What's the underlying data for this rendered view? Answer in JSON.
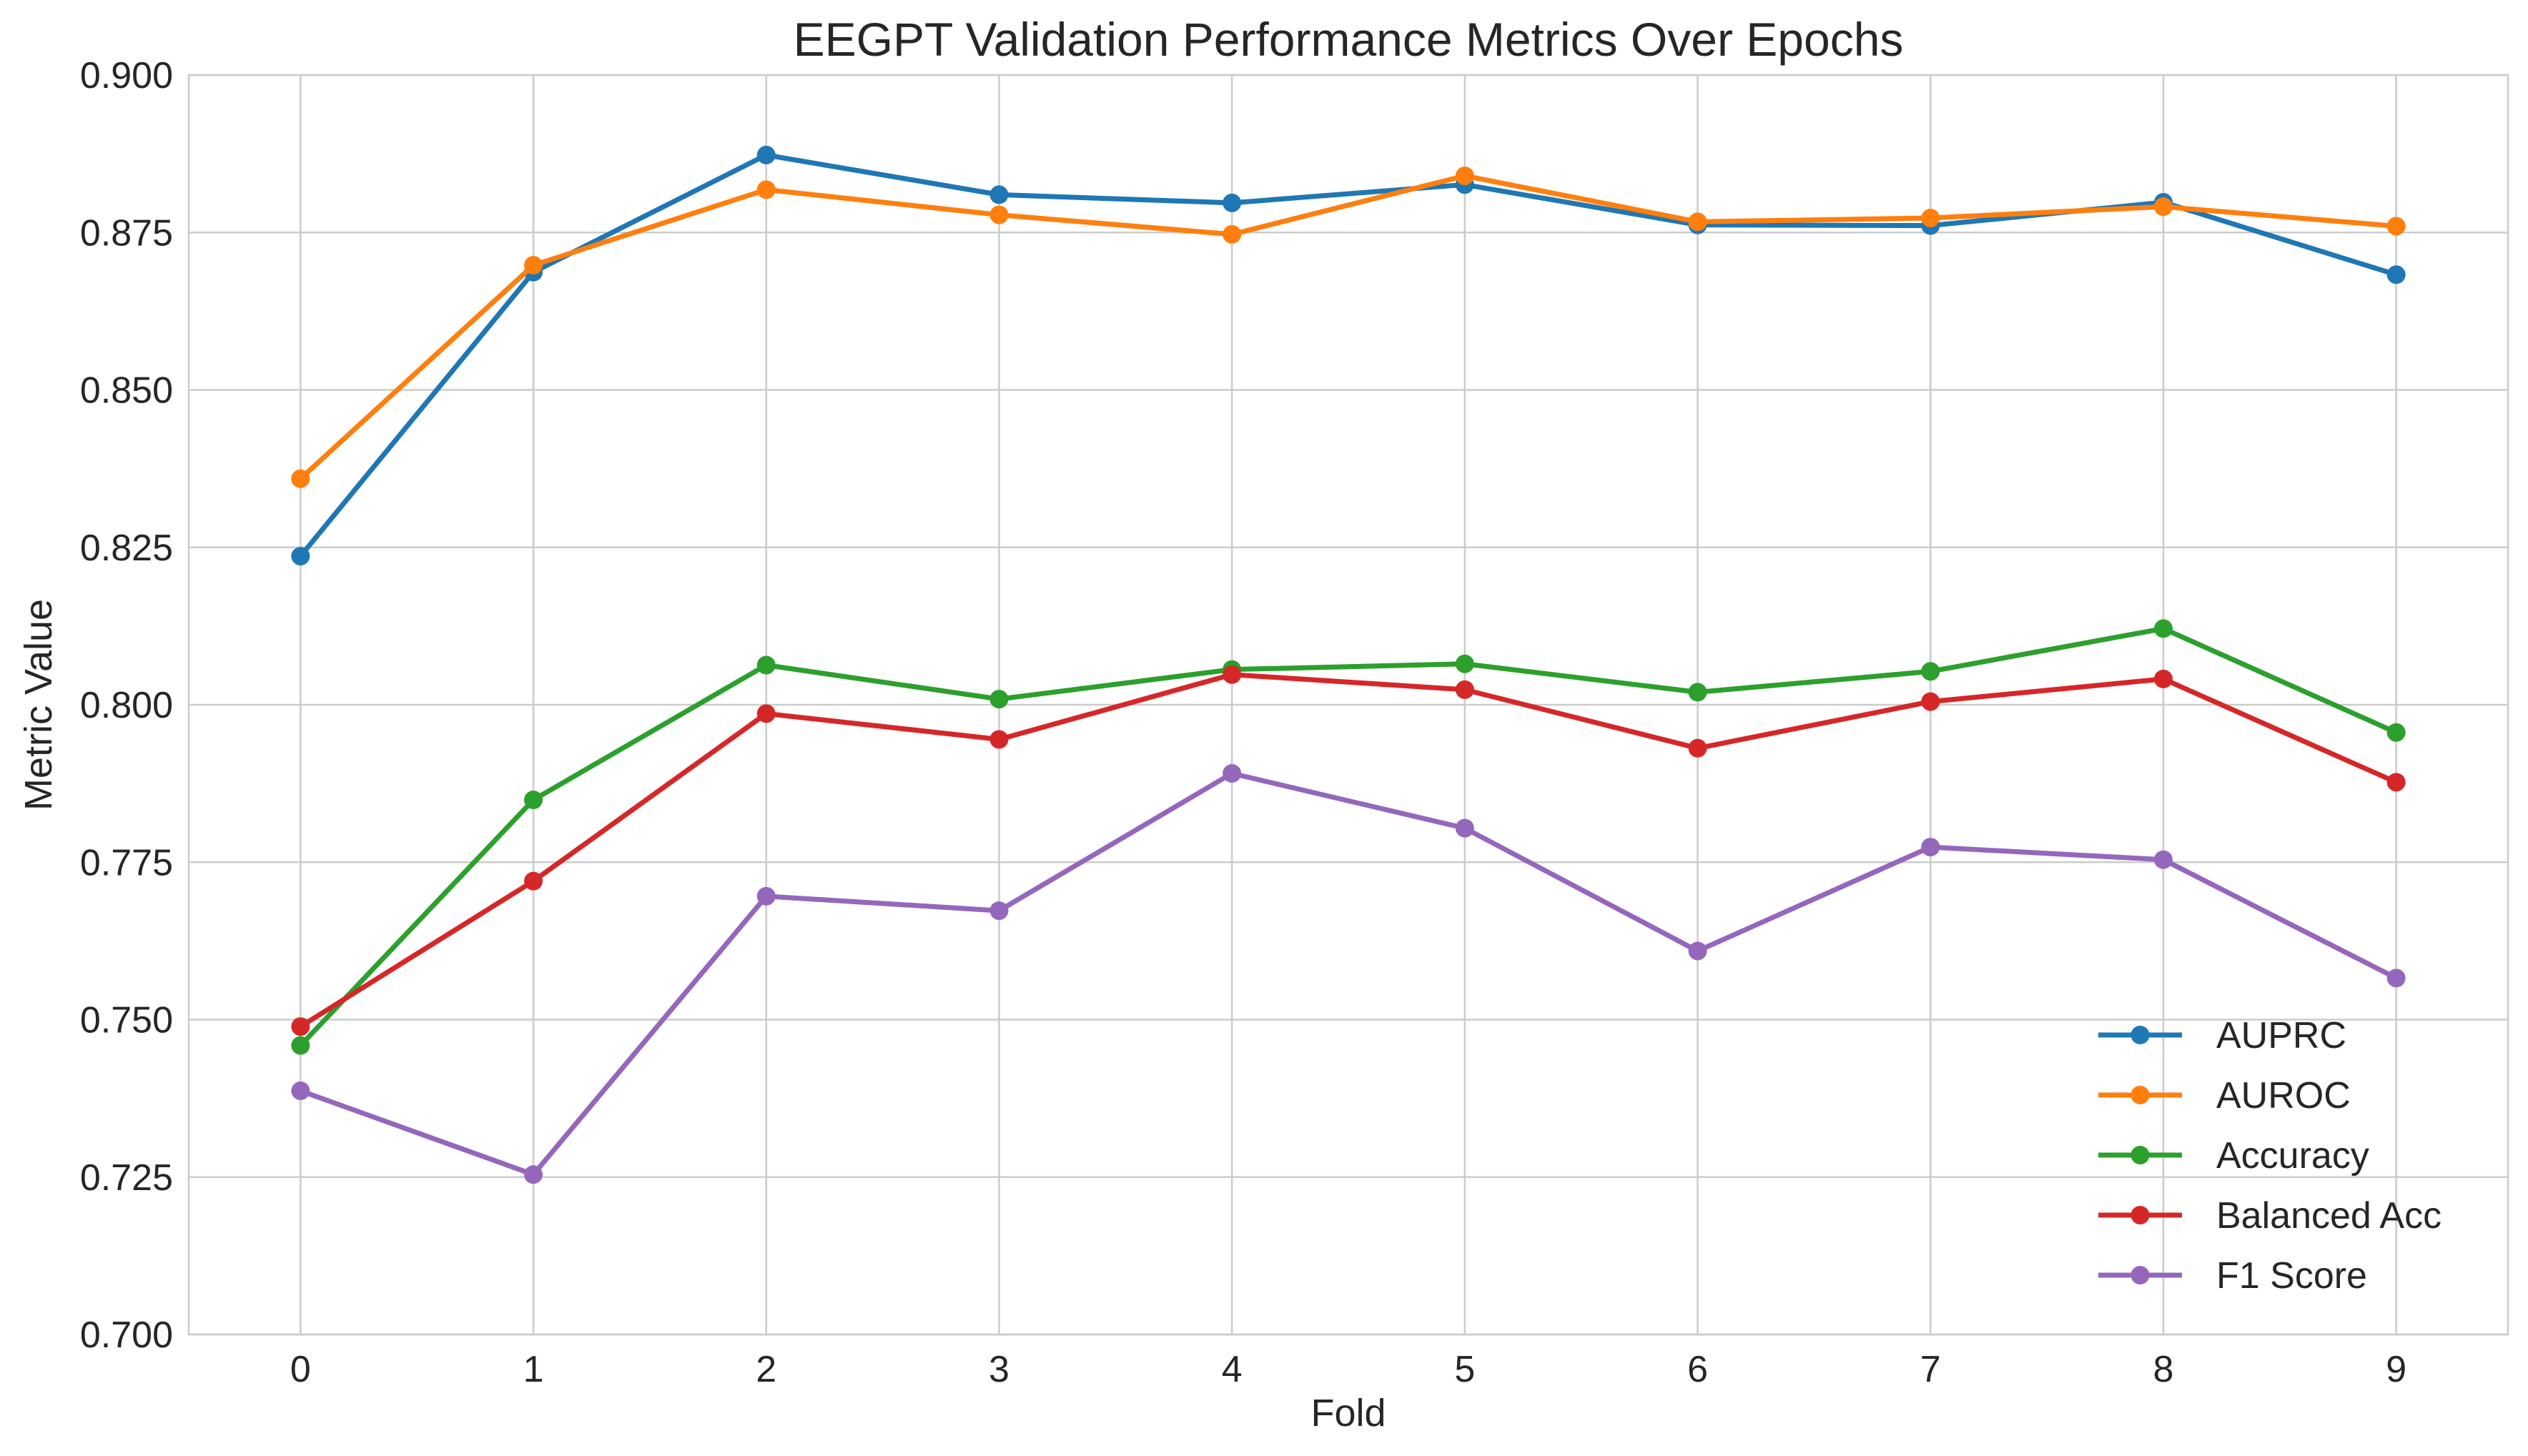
{
  "chart_data": {
    "type": "line",
    "title": "EEGPT Validation Performance Metrics Over Epochs",
    "xlabel": "Fold",
    "ylabel": "Metric Value",
    "x": [
      0,
      1,
      2,
      3,
      4,
      5,
      6,
      7,
      8,
      9
    ],
    "xticks": [
      "0",
      "1",
      "2",
      "3",
      "4",
      "5",
      "6",
      "7",
      "8",
      "9"
    ],
    "xlim": [
      -0.48,
      9.48
    ],
    "ylim": [
      0.7,
      0.9
    ],
    "yticks": [
      "0.700",
      "0.725",
      "0.750",
      "0.775",
      "0.800",
      "0.825",
      "0.850",
      "0.875",
      "0.900"
    ],
    "grid": true,
    "legend_position": "lower-right",
    "series": [
      {
        "name": "AUPRC",
        "color": "#1f77b4",
        "values": [
          0.8236,
          0.8687,
          0.8873,
          0.881,
          0.8797,
          0.8826,
          0.8762,
          0.8761,
          0.8798,
          0.8683
        ]
      },
      {
        "name": "AUROC",
        "color": "#ff7f0e",
        "values": [
          0.8359,
          0.8698,
          0.8818,
          0.8778,
          0.8747,
          0.884,
          0.8767,
          0.8773,
          0.8791,
          0.876
        ]
      },
      {
        "name": "Accuracy",
        "color": "#2ca02c",
        "values": [
          0.7459,
          0.7849,
          0.8063,
          0.8009,
          0.8056,
          0.8065,
          0.802,
          0.8053,
          0.8121,
          0.7956
        ]
      },
      {
        "name": "Balanced Acc",
        "color": "#d62728",
        "values": [
          0.7489,
          0.772,
          0.7986,
          0.7945,
          0.8048,
          0.8024,
          0.7931,
          0.8005,
          0.8041,
          0.7877
        ]
      },
      {
        "name": "F1 Score",
        "color": "#9467bd",
        "values": [
          0.7387,
          0.7254,
          0.7696,
          0.7673,
          0.7891,
          0.7804,
          0.7609,
          0.7774,
          0.7754,
          0.7566
        ]
      }
    ]
  }
}
